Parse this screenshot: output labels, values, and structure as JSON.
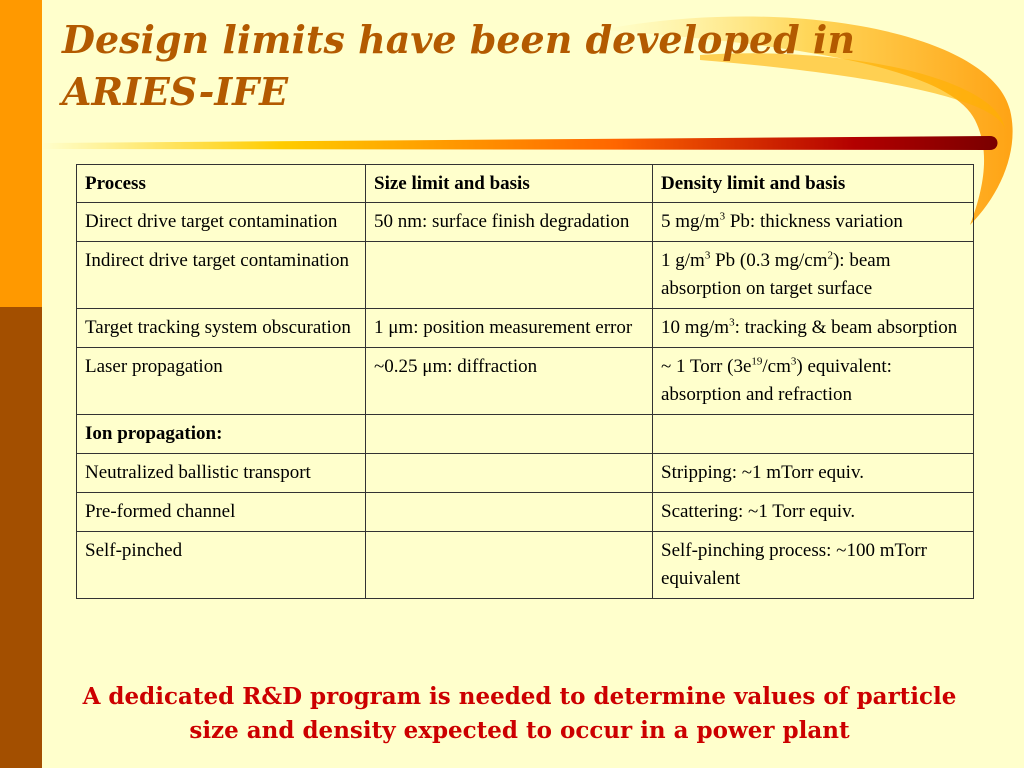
{
  "slide": {
    "title": "Design limits have been developed in ARIES-IFE",
    "note": "A dedicated R&D program is needed to determine values of particle size and density expected to occur in a power plant"
  },
  "colors": {
    "background": "#FFFFCC",
    "bar_top": "#FF9900",
    "bar_bottom": "#A34F00",
    "title": "#B35A00",
    "note": "#CC0000",
    "swoosh_dark": "#8B0000",
    "swoosh_light": "#FFCC00"
  },
  "table": {
    "headers": [
      "Process",
      "Size limit and basis",
      "Density limit and basis"
    ],
    "rows": [
      {
        "process": "Direct drive target contamination",
        "size": "50 nm:  surface finish degradation",
        "density": {
          "a": "5 mg/m",
          "sup1": "3",
          "b": " Pb:  thickness variation"
        }
      },
      {
        "process": "Indirect drive target contamination",
        "size": "",
        "density": {
          "a": "1 g/m",
          "sup1": "3",
          "b": " Pb (0.3 mg/cm",
          "sup2": "2",
          "c": "):  beam absorption on target surface"
        }
      },
      {
        "process": "Target tracking system obscuration",
        "size": "1 μm:  position measurement error",
        "density": {
          "a": "10 mg/m",
          "sup1": "3",
          "b": ":  tracking & beam absorption"
        }
      },
      {
        "process": "Laser propagation",
        "size": "~0.25 μm:  diffraction",
        "density": {
          "a": "~ 1 Torr (3e",
          "sup1": "19",
          "b": "/cm",
          "sup2": "3",
          "c": ") equivalent:  absorption and refraction"
        }
      },
      {
        "process": "Ion propagation:",
        "size": "",
        "density": ""
      },
      {
        "process": "Neutralized ballistic transport",
        "size": "",
        "density": "Stripping:  ~1 mTorr equiv."
      },
      {
        "process": "Pre-formed channel",
        "size": "",
        "density": "Scattering:  ~1 Torr equiv."
      },
      {
        "process": "Self-pinched",
        "size": "",
        "density": "Self-pinching process:  ~100 mTorr equivalent"
      }
    ]
  }
}
